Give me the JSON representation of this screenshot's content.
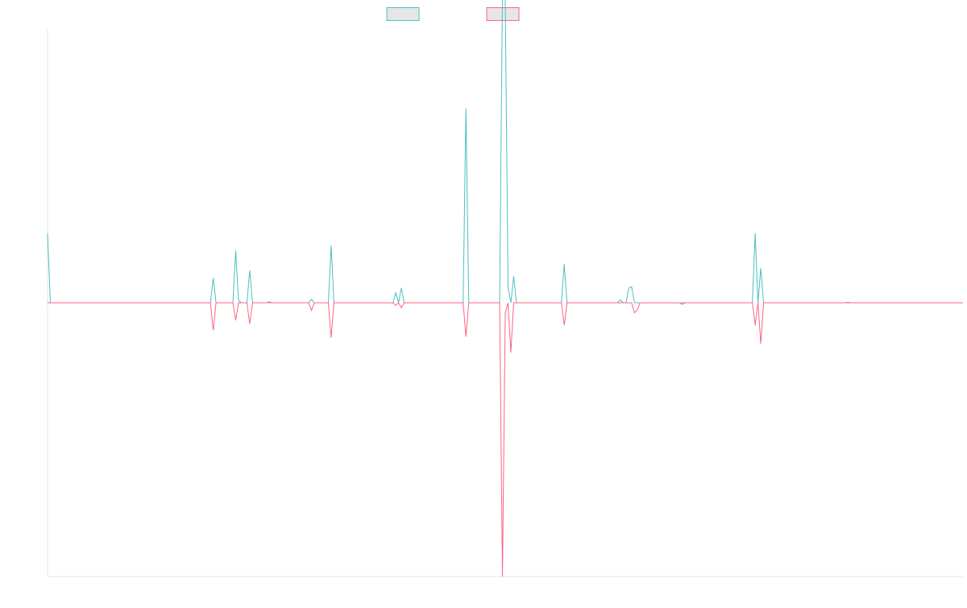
{
  "chart_data": {
    "type": "line",
    "title": "",
    "xlabel": "",
    "ylabel": "",
    "grid": false,
    "legend_position": "top-center",
    "ylim": [
      -55,
      55
    ],
    "series": [
      {
        "name": "",
        "color": "#4bc0c0",
        "fill": "#e6e6e6",
        "points": [
          [
            0,
            14
          ],
          [
            1,
            0
          ],
          [
            58,
            0
          ],
          [
            59,
            5
          ],
          [
            60,
            0
          ],
          [
            66,
            0
          ],
          [
            67,
            10.5
          ],
          [
            68,
            0.5
          ],
          [
            69,
            0
          ],
          [
            71,
            0
          ],
          [
            72,
            6.5
          ],
          [
            73,
            0
          ],
          [
            93,
            0
          ],
          [
            94,
            0.7
          ],
          [
            95,
            0
          ],
          [
            100,
            0
          ],
          [
            101,
            11.5
          ],
          [
            102,
            0
          ],
          [
            123,
            0
          ],
          [
            124,
            2
          ],
          [
            125,
            0
          ],
          [
            126,
            3
          ],
          [
            127,
            0
          ],
          [
            148,
            0
          ],
          [
            149,
            39
          ],
          [
            150,
            0
          ],
          [
            161,
            0
          ],
          [
            162,
            62.5
          ],
          [
            163,
            61
          ],
          [
            164,
            3
          ],
          [
            165,
            0
          ],
          [
            166,
            5.3
          ],
          [
            167,
            0
          ],
          [
            183,
            0
          ],
          [
            184,
            7.8
          ],
          [
            185,
            0
          ],
          [
            203,
            0
          ],
          [
            204,
            0.6
          ],
          [
            205,
            0
          ],
          [
            206,
            0
          ],
          [
            207,
            3
          ],
          [
            208,
            3.2
          ],
          [
            209,
            0
          ],
          [
            251,
            0
          ],
          [
            252,
            14
          ],
          [
            253,
            0
          ],
          [
            254,
            7
          ],
          [
            255,
            0
          ],
          [
            326,
            0
          ]
        ]
      },
      {
        "name": "",
        "color": "#ff6384",
        "fill": "#e6e6e6",
        "points": [
          [
            0,
            0
          ],
          [
            58,
            0
          ],
          [
            59,
            -5.5
          ],
          [
            60,
            0
          ],
          [
            66,
            0
          ],
          [
            67,
            -3.5
          ],
          [
            68,
            0
          ],
          [
            71,
            0
          ],
          [
            72,
            -4.2
          ],
          [
            73,
            0
          ],
          [
            78,
            0
          ],
          [
            79,
            0.2
          ],
          [
            80,
            0
          ],
          [
            93,
            0
          ],
          [
            94,
            -1.5
          ],
          [
            95,
            0
          ],
          [
            100,
            0
          ],
          [
            101,
            -7
          ],
          [
            102,
            0
          ],
          [
            123,
            0
          ],
          [
            124,
            -0.5
          ],
          [
            125,
            0
          ],
          [
            126,
            -1
          ],
          [
            127,
            0
          ],
          [
            148,
            0
          ],
          [
            149,
            -6.8
          ],
          [
            150,
            0
          ],
          [
            161,
            0
          ],
          [
            162,
            -55
          ],
          [
            163,
            -2
          ],
          [
            164,
            0
          ],
          [
            165,
            -10
          ],
          [
            166,
            0
          ],
          [
            183,
            0
          ],
          [
            184,
            -4.5
          ],
          [
            185,
            0
          ],
          [
            208,
            0
          ],
          [
            209,
            -2
          ],
          [
            210,
            -1.5
          ],
          [
            211,
            0
          ],
          [
            225,
            0
          ],
          [
            226,
            -0.3
          ],
          [
            227,
            0
          ],
          [
            251,
            0
          ],
          [
            252,
            -4.5
          ],
          [
            253,
            0
          ],
          [
            254,
            -8.2
          ],
          [
            255,
            0
          ],
          [
            284,
            0
          ],
          [
            285,
            0.1
          ],
          [
            286,
            0
          ],
          [
            326,
            0
          ]
        ]
      }
    ]
  }
}
